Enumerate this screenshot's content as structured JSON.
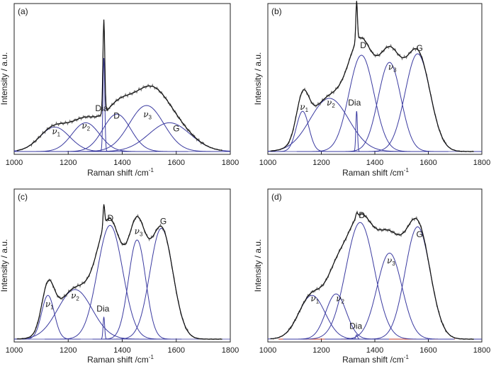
{
  "figure": {
    "xlabel_main": "Raman shift /cm",
    "xlabel_sup": "-1",
    "ylabel": "Intensity / a.u."
  },
  "colors": {
    "fit_curve": "#3a3aa0",
    "measured": "#111111",
    "baseline": "#c0392b",
    "axis": "#222222"
  },
  "chart_data": [
    {
      "panel": "(a)",
      "type": "line",
      "xlabel": "Raman shift /cm-1",
      "ylabel": "Intensity / a.u.",
      "xlim": [
        1000,
        1800
      ],
      "xticks": [
        1000,
        1200,
        1400,
        1600,
        1800
      ],
      "ylim": [
        0,
        1.0
      ],
      "grid": false,
      "components": [
        {
          "name": "ν1",
          "center": 1150,
          "fwhm": 130,
          "height": 0.17
        },
        {
          "name": "ν2",
          "center": 1265,
          "fwhm": 120,
          "height": 0.2
        },
        {
          "name": "Dia",
          "center": 1332,
          "fwhm": 8,
          "height": 0.65
        },
        {
          "name": "D",
          "center": 1380,
          "fwhm": 120,
          "height": 0.26
        },
        {
          "name": "ν3",
          "center": 1490,
          "fwhm": 150,
          "height": 0.32
        },
        {
          "name": "G",
          "center": 1575,
          "fwhm": 180,
          "height": 0.2
        }
      ],
      "labels": [
        {
          "text": "ν",
          "sub": "1",
          "x": 1140,
          "y": 0.12
        },
        {
          "text": "ν",
          "sub": "2",
          "x": 1250,
          "y": 0.16
        },
        {
          "text": "Dia",
          "x": 1300,
          "y": 0.28
        },
        {
          "text": "D",
          "x": 1368,
          "y": 0.23
        },
        {
          "text": "ν",
          "sub": "3",
          "x": 1478,
          "y": 0.24
        },
        {
          "text": "G",
          "x": 1588,
          "y": 0.14
        }
      ]
    },
    {
      "panel": "(b)",
      "type": "line",
      "xlabel": "Raman shift /cm-1",
      "ylabel": "Intensity / a.u.",
      "xlim": [
        1000,
        1800
      ],
      "xticks": [
        1000,
        1200,
        1400,
        1600,
        1800
      ],
      "ylim": [
        0,
        1.0
      ],
      "grid": false,
      "components": [
        {
          "name": "ν1",
          "center": 1130,
          "fwhm": 55,
          "height": 0.28
        },
        {
          "name": "ν2",
          "center": 1230,
          "fwhm": 170,
          "height": 0.37
        },
        {
          "name": "Dia",
          "center": 1332,
          "fwhm": 7,
          "height": 0.28
        },
        {
          "name": "D",
          "center": 1350,
          "fwhm": 110,
          "height": 0.67
        },
        {
          "name": "ν3",
          "center": 1455,
          "fwhm": 100,
          "height": 0.62
        },
        {
          "name": "G",
          "center": 1560,
          "fwhm": 110,
          "height": 0.68
        }
      ],
      "labels": [
        {
          "text": "ν",
          "sub": "1",
          "x": 1120,
          "y": 0.29
        },
        {
          "text": "ν",
          "sub": "2",
          "x": 1220,
          "y": 0.32
        },
        {
          "text": "Dia",
          "x": 1300,
          "y": 0.32
        },
        {
          "text": "D",
          "x": 1345,
          "y": 0.72
        },
        {
          "text": "ν",
          "sub": "3",
          "x": 1450,
          "y": 0.57
        },
        {
          "text": "G",
          "x": 1555,
          "y": 0.7
        }
      ]
    },
    {
      "panel": "(c)",
      "type": "line",
      "xlabel": "Raman shift /cm-1",
      "ylabel": "Intensity / a.u.",
      "xlim": [
        1000,
        1800
      ],
      "xticks": [
        1000,
        1200,
        1400,
        1600,
        1800
      ],
      "ylim": [
        0,
        1.0
      ],
      "grid": false,
      "components": [
        {
          "name": "ν1",
          "center": 1125,
          "fwhm": 55,
          "height": 0.3
        },
        {
          "name": "ν2",
          "center": 1225,
          "fwhm": 150,
          "height": 0.34
        },
        {
          "name": "Dia",
          "center": 1332,
          "fwhm": 7,
          "height": 0.15
        },
        {
          "name": "D",
          "center": 1355,
          "fwhm": 110,
          "height": 0.78
        },
        {
          "name": "ν3",
          "center": 1455,
          "fwhm": 75,
          "height": 0.68
        },
        {
          "name": "G",
          "center": 1545,
          "fwhm": 100,
          "height": 0.76
        }
      ],
      "labels": [
        {
          "text": "ν",
          "sub": "1",
          "x": 1115,
          "y": 0.22
        },
        {
          "text": "ν",
          "sub": "2",
          "x": 1210,
          "y": 0.28
        },
        {
          "text": "Dia",
          "x": 1305,
          "y": 0.19
        },
        {
          "text": "D",
          "x": 1345,
          "y": 0.81
        },
        {
          "text": "ν",
          "sub": "3",
          "x": 1445,
          "y": 0.72
        },
        {
          "text": "G",
          "x": 1540,
          "y": 0.79
        }
      ]
    },
    {
      "panel": "(d)",
      "type": "line",
      "xlabel": "Raman shift /cm-1",
      "ylabel": "Intensity / a.u.",
      "xlim": [
        1000,
        1800
      ],
      "xticks": [
        1000,
        1200,
        1400,
        1600,
        1800
      ],
      "ylim": [
        0,
        1.0
      ],
      "grid": false,
      "components": [
        {
          "name": "ν1",
          "center": 1165,
          "fwhm": 115,
          "height": 0.3
        },
        {
          "name": "ν2",
          "center": 1255,
          "fwhm": 90,
          "height": 0.31
        },
        {
          "name": "Dia",
          "center": 1332,
          "fwhm": 8,
          "height": 0.03
        },
        {
          "name": "D",
          "center": 1345,
          "fwhm": 125,
          "height": 0.8
        },
        {
          "name": "ν3",
          "center": 1455,
          "fwhm": 110,
          "height": 0.59
        },
        {
          "name": "G",
          "center": 1560,
          "fwhm": 110,
          "height": 0.77
        }
      ],
      "labels": [
        {
          "text": "ν",
          "sub": "1",
          "x": 1160,
          "y": 0.26
        },
        {
          "text": "ν",
          "sub": "2",
          "x": 1255,
          "y": 0.26
        },
        {
          "text": "Dia",
          "x": 1305,
          "y": 0.07
        },
        {
          "text": "D",
          "x": 1340,
          "y": 0.83
        },
        {
          "text": "ν",
          "sub": "3",
          "x": 1445,
          "y": 0.52
        },
        {
          "text": "G",
          "x": 1555,
          "y": 0.7
        }
      ]
    }
  ]
}
